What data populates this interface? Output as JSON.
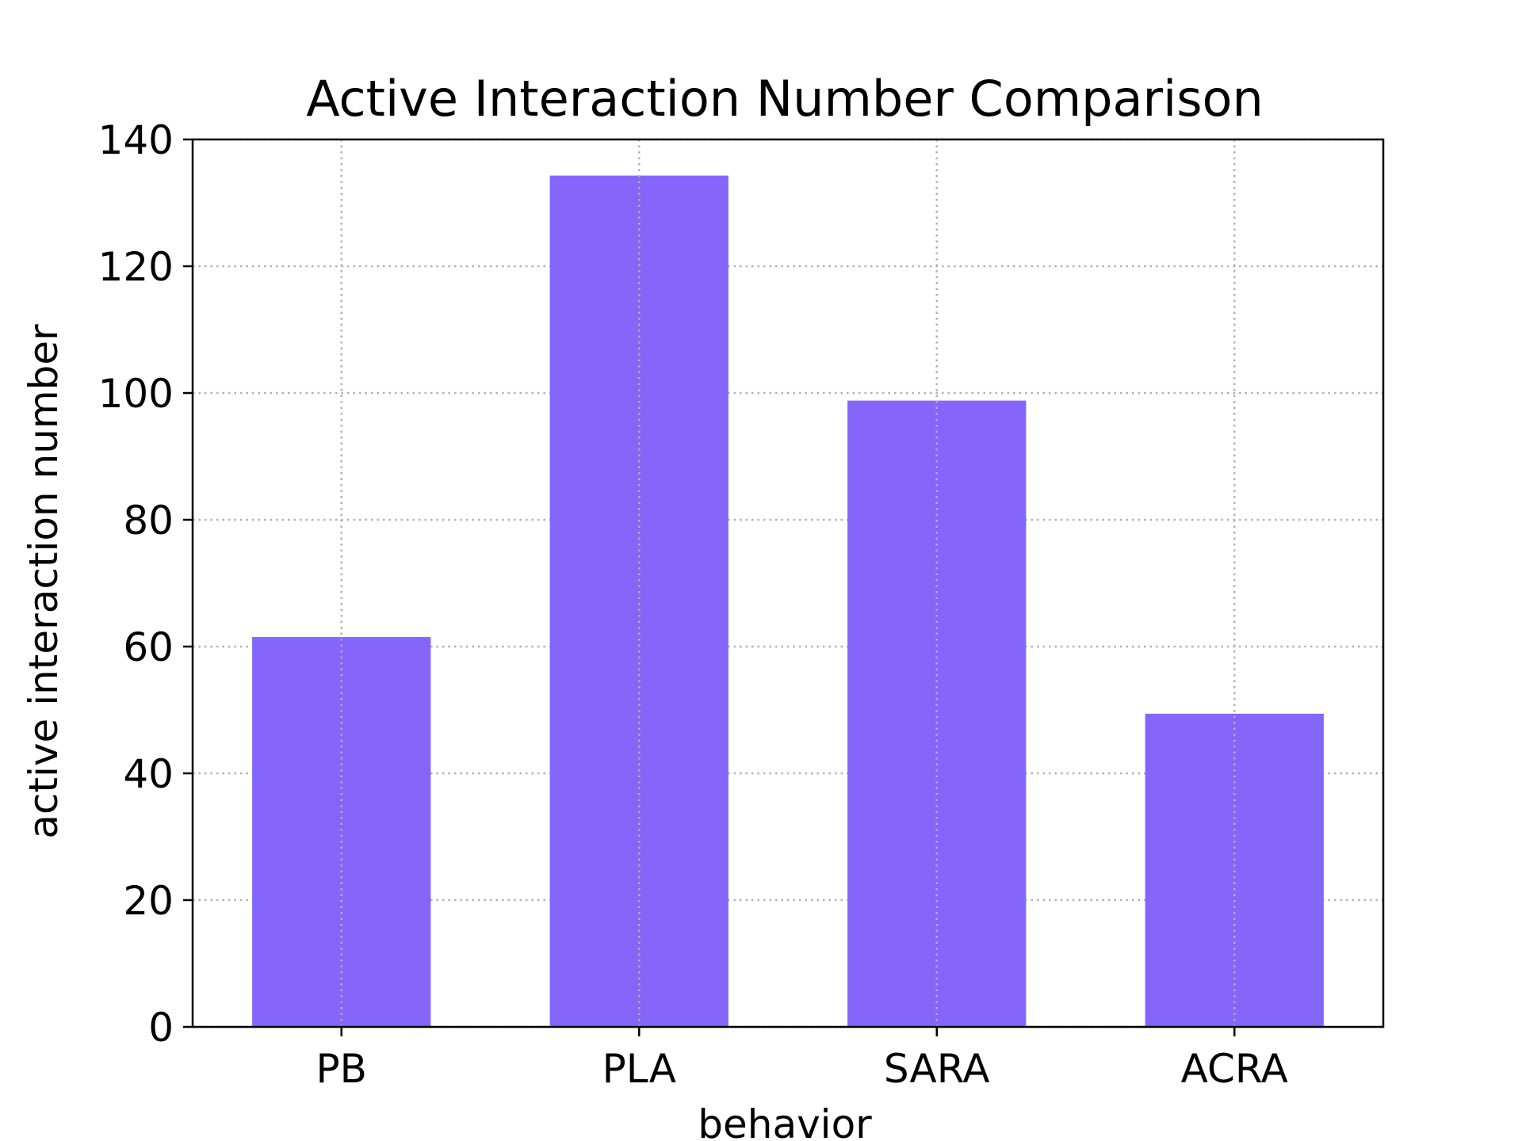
{
  "chart_data": {
    "type": "bar",
    "title": "Active Interaction Number Comparison",
    "xlabel": "behavior",
    "ylabel": "active interaction number",
    "categories": [
      "PB",
      "PLA",
      "SARA",
      "ACRA"
    ],
    "values": [
      61.5,
      134.3,
      98.8,
      49.4
    ],
    "ylim": [
      0,
      140
    ],
    "yticks": [
      0,
      20,
      40,
      60,
      80,
      100,
      120,
      140
    ],
    "ytick_labels": [
      "0",
      "20",
      "40",
      "60",
      "80",
      "100",
      "120",
      "140"
    ],
    "grid": true,
    "bar_color": "#8566fb",
    "grid_color": "#b0b0b0"
  }
}
